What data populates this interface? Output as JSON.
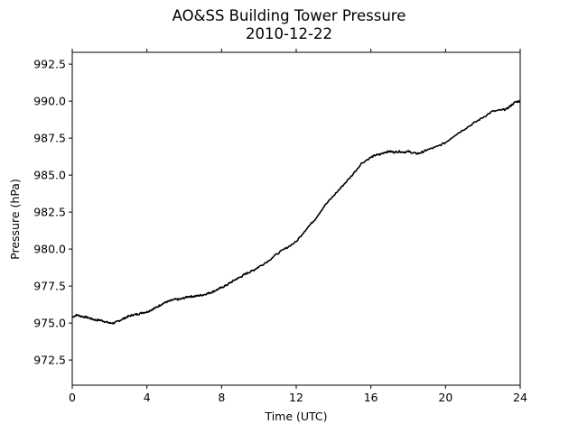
{
  "chart_data": {
    "type": "line",
    "title": [
      "AO&SS Building Tower Pressure",
      "2010-12-22"
    ],
    "xlabel": "Time (UTC)",
    "ylabel": "Pressure (hPa)",
    "xlim": [
      0,
      24
    ],
    "ylim": [
      970.8,
      993.3
    ],
    "xticks": [
      0,
      4,
      8,
      12,
      16,
      20,
      24
    ],
    "xtick_labels": [
      "0",
      "4",
      "8",
      "12",
      "16",
      "20",
      "24"
    ],
    "yticks": [
      972.5,
      975.0,
      977.5,
      980.0,
      982.5,
      985.0,
      987.5,
      990.0,
      992.5
    ],
    "ytick_labels": [
      "972.5",
      "975.0",
      "977.5",
      "980.0",
      "982.5",
      "985.0",
      "987.5",
      "990.0",
      "992.5"
    ],
    "grid": false,
    "line_color": "#000000",
    "series": [
      {
        "x": [
          0,
          0.25,
          0.5,
          0.75,
          1.0,
          1.25,
          1.5,
          1.75,
          2.0,
          2.25,
          2.5,
          2.75,
          3.0,
          3.25,
          3.5,
          3.75,
          4.0,
          4.25,
          4.5,
          4.75,
          5.0,
          5.25,
          5.5,
          5.75,
          6.0,
          6.25,
          6.5,
          6.75,
          7.0,
          7.25,
          7.5,
          7.75,
          8.0,
          8.25,
          8.5,
          8.75,
          9.0,
          9.25,
          9.5,
          9.75,
          10.0,
          10.5,
          11.0,
          11.5,
          12.0,
          12.5,
          13.0,
          13.5,
          14.0,
          14.5,
          15.0,
          15.5,
          16.0,
          16.25,
          16.5,
          16.75,
          17.0,
          17.25,
          17.5,
          17.75,
          18.0,
          18.25,
          18.5,
          18.75,
          19.0,
          19.5,
          20.0,
          20.5,
          21.0,
          21.5,
          22.0,
          22.5,
          23.0,
          23.25,
          23.5,
          23.75,
          24.0
        ],
        "y": [
          975.4,
          975.55,
          975.45,
          975.4,
          975.3,
          975.2,
          975.2,
          975.1,
          975.0,
          975.0,
          975.15,
          975.3,
          975.45,
          975.55,
          975.6,
          975.7,
          975.75,
          975.9,
          976.05,
          976.25,
          976.4,
          976.5,
          976.6,
          976.6,
          976.7,
          976.8,
          976.8,
          976.85,
          976.9,
          977.0,
          977.1,
          977.25,
          977.4,
          977.55,
          977.75,
          977.95,
          978.1,
          978.3,
          978.45,
          978.6,
          978.8,
          979.2,
          979.7,
          980.1,
          980.5,
          981.3,
          982.0,
          982.9,
          983.6,
          984.3,
          985.0,
          985.8,
          986.2,
          986.35,
          986.4,
          986.55,
          986.6,
          986.55,
          986.6,
          986.55,
          986.6,
          986.5,
          986.45,
          986.55,
          986.7,
          986.9,
          987.2,
          987.7,
          988.1,
          988.5,
          988.9,
          989.3,
          989.4,
          989.45,
          989.7,
          989.95,
          990.0
        ]
      }
    ]
  }
}
